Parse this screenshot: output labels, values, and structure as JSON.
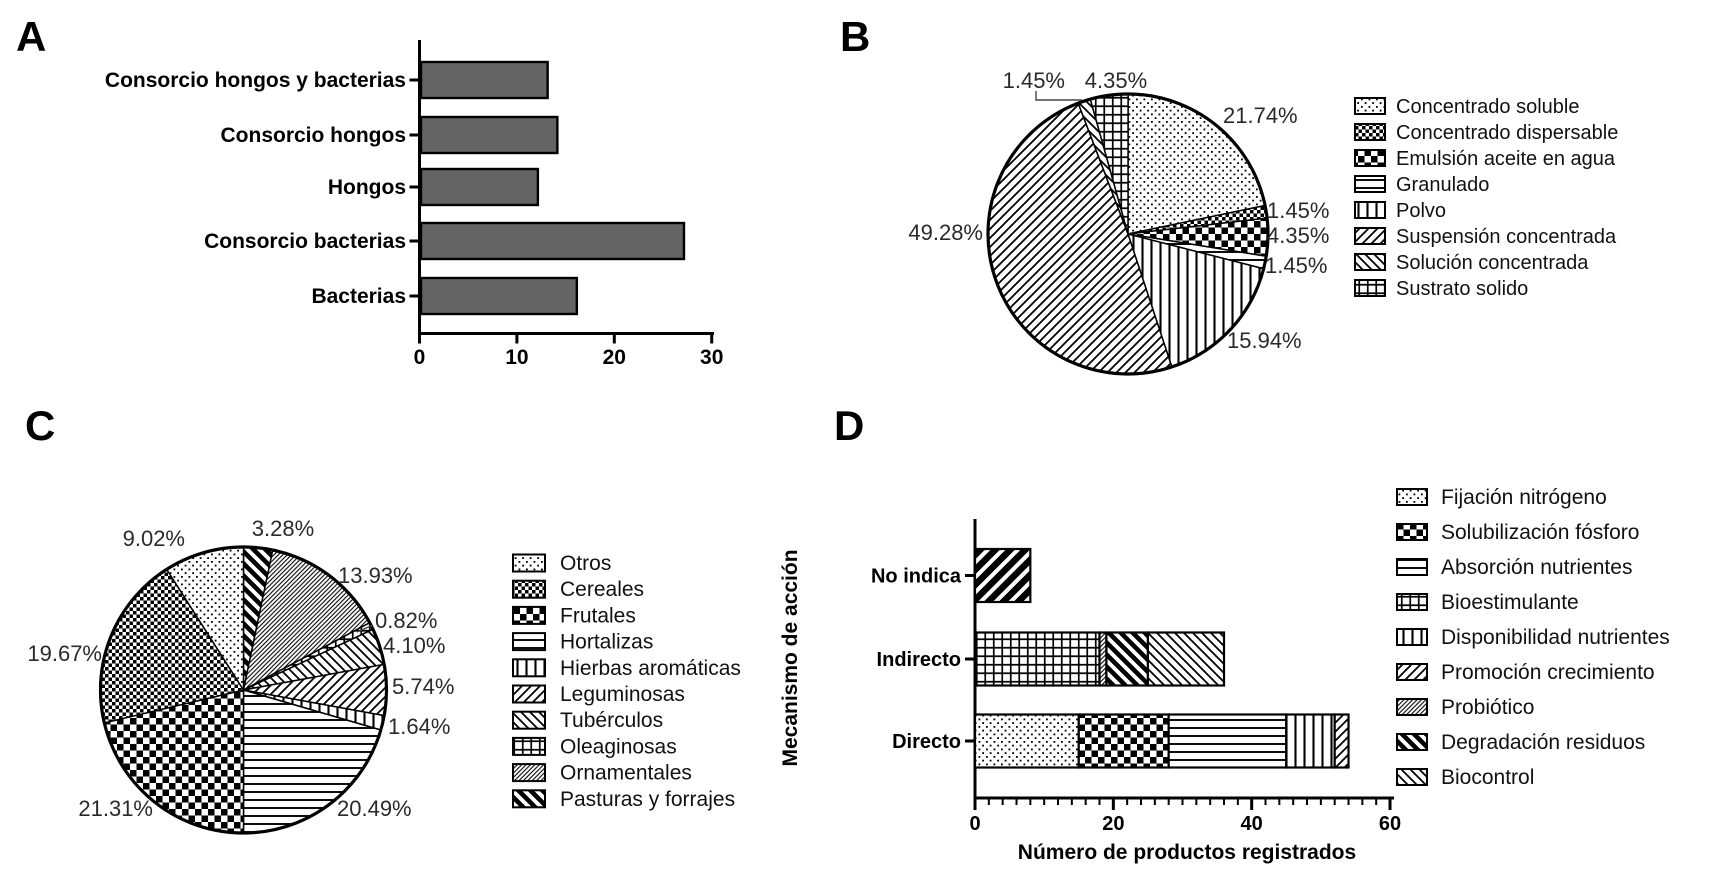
{
  "figure": {
    "panel_letters": [
      "A",
      "B",
      "C",
      "D"
    ],
    "background": "#ffffff"
  },
  "chart_data": [
    {
      "panel": "A",
      "type": "bar",
      "orientation": "horizontal",
      "categories": [
        "Consorcio hongos y bacterias",
        "Consorcio hongos",
        "Hongos",
        "Consorcio bacterias",
        "Bacterias"
      ],
      "values": [
        13,
        14,
        12,
        27,
        16
      ],
      "xticks": [
        "0",
        "10",
        "20",
        "30"
      ],
      "xlim": [
        0,
        30
      ],
      "bar_color": "#646464",
      "grid": false,
      "legend_position": "none"
    },
    {
      "panel": "B",
      "type": "pie",
      "start_angle": "top",
      "direction": "clockwise",
      "legend_position": "right",
      "slices": [
        {
          "label": "Concentrado soluble",
          "value": 21.74,
          "display": "21.74%",
          "pattern": "dots"
        },
        {
          "label": "Concentrado dispersable",
          "value": 1.45,
          "display": "1.45%",
          "pattern": "checker-fine"
        },
        {
          "label": "Emulsión aceite en agua",
          "value": 4.35,
          "display": "4.35%",
          "pattern": "checker-bold"
        },
        {
          "label": "Granulado",
          "value": 1.45,
          "display": "1.45%",
          "pattern": "hlines"
        },
        {
          "label": "Polvo",
          "value": 15.94,
          "display": "15.94%",
          "pattern": "vlines"
        },
        {
          "label": "Suspensión concentrada",
          "value": 49.28,
          "display": "49.28%",
          "pattern": "diag-f"
        },
        {
          "label": "Solución concentrada",
          "value": 1.45,
          "display": "1.45%",
          "pattern": "diag-b"
        },
        {
          "label": "Sustrato solido",
          "value": 4.35,
          "display": "4.35%",
          "pattern": "grid"
        }
      ],
      "legend_order": [
        "Concentrado soluble",
        "Concentrado dispersable",
        "Emulsión aceite en agua",
        "Granulado",
        "Polvo",
        "Suspensión concentrada",
        "Solución concentrada",
        "Sustrato solido"
      ]
    },
    {
      "panel": "C",
      "type": "pie",
      "start_angle": "top",
      "direction": "clockwise",
      "legend_position": "right",
      "slices": [
        {
          "label": "Pasturas y forrajes",
          "value": 3.28,
          "display": "3.28%",
          "pattern": "diag-b-bold"
        },
        {
          "label": "Ornamentales",
          "value": 13.93,
          "display": "13.93%",
          "pattern": "diag-f-dense"
        },
        {
          "label": "Oleaginosas",
          "value": 0.82,
          "display": "0.82%",
          "pattern": "grid"
        },
        {
          "label": "Tubérculos",
          "value": 4.1,
          "display": "4.10%",
          "pattern": "diag-b"
        },
        {
          "label": "Leguminosas",
          "value": 5.74,
          "display": "5.74%",
          "pattern": "diag-f"
        },
        {
          "label": "Hierbas aromáticas",
          "value": 1.64,
          "display": "1.64%",
          "pattern": "vlines"
        },
        {
          "label": "Hortalizas",
          "value": 20.49,
          "display": "20.49%",
          "pattern": "hlines"
        },
        {
          "label": "Frutales",
          "value": 21.31,
          "display": "21.31%",
          "pattern": "checker-bold"
        },
        {
          "label": "Cereales",
          "value": 19.67,
          "display": "19.67%",
          "pattern": "checker-fine"
        },
        {
          "label": "Otros",
          "value": 9.02,
          "display": "9.02%",
          "pattern": "dots"
        }
      ],
      "legend_order": [
        "Otros",
        "Cereales",
        "Frutales",
        "Hortalizas",
        "Hierbas aromáticas",
        "Leguminosas",
        "Tubérculos",
        "Oleaginosas",
        "Ornamentales",
        "Pasturas y forrajes"
      ]
    },
    {
      "panel": "D",
      "type": "stacked-bar",
      "orientation": "horizontal",
      "xlabel": "Número de productos registrados",
      "ylabel": "Mecanismo de acción",
      "categories": [
        "No indica",
        "Indirecto",
        "Directo"
      ],
      "xticks": [
        "0",
        "20",
        "40",
        "60"
      ],
      "xlim": [
        0,
        60
      ],
      "legend_position": "right",
      "bars": [
        {
          "category": "No indica",
          "total": 8,
          "segments": [
            {
              "label": "No indica",
              "value": 8,
              "pattern": "diag-f-xbold"
            }
          ]
        },
        {
          "category": "Indirecto",
          "total": 36,
          "segments": [
            {
              "label": "Bioestimulante",
              "value": 18,
              "pattern": "grid"
            },
            {
              "label": "Probiótico",
              "value": 1,
              "pattern": "diag-f-dense"
            },
            {
              "label": "Degradación residuos",
              "value": 6,
              "pattern": "diag-b-bold"
            },
            {
              "label": "Biocontrol",
              "value": 11,
              "pattern": "diag-b"
            }
          ]
        },
        {
          "category": "Directo",
          "total": 54,
          "segments": [
            {
              "label": "Fijación nitrógeno",
              "value": 15,
              "pattern": "dots"
            },
            {
              "label": "Solubilización fósforo",
              "value": 13,
              "pattern": "checker-bold"
            },
            {
              "label": "Absorción nutrientes",
              "value": 17,
              "pattern": "hlines"
            },
            {
              "label": "Disponibilidad nutrientes",
              "value": 7,
              "pattern": "vlines"
            },
            {
              "label": "Promoción crecimiento",
              "value": 2,
              "pattern": "diag-f"
            }
          ]
        }
      ],
      "legend": [
        {
          "label": "Fijación nitrógeno",
          "pattern": "dots"
        },
        {
          "label": "Solubilización fósforo",
          "pattern": "checker-bold"
        },
        {
          "label": "Absorción nutrientes",
          "pattern": "hlines"
        },
        {
          "label": "Bioestimulante",
          "pattern": "grid"
        },
        {
          "label": "Disponibilidad nutrientes",
          "pattern": "vlines"
        },
        {
          "label": "Promoción crecimiento",
          "pattern": "diag-f"
        },
        {
          "label": "Probiótico",
          "pattern": "diag-f-dense"
        },
        {
          "label": "Degradación residuos",
          "pattern": "diag-b-bold"
        },
        {
          "label": "Biocontrol",
          "pattern": "diag-b"
        }
      ]
    }
  ]
}
